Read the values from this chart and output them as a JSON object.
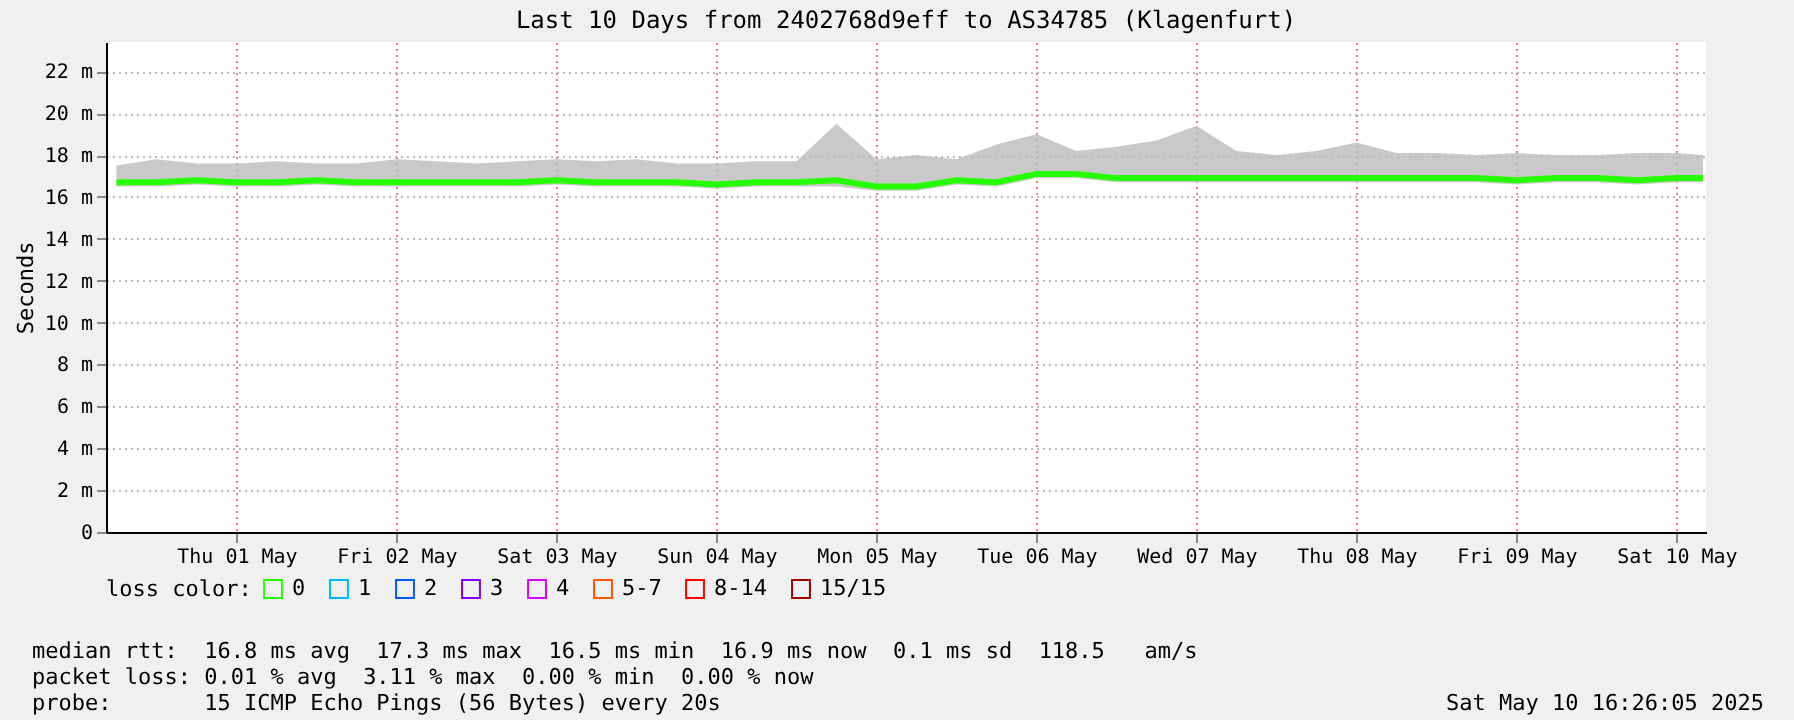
{
  "chart_data": {
    "type": "line",
    "title": "Last 10 Days from 2402768d9eff to AS34785 (Klagenfurt)",
    "ylabel": "Seconds",
    "legend_title": "loss color:",
    "legend": "bottom",
    "grid": true,
    "marker": "none",
    "line_style": "solid",
    "x": [
      "2025-04-30T18:00",
      "2025-05-01T00:00",
      "2025-05-01T06:00",
      "2025-05-01T12:00",
      "2025-05-01T18:00",
      "2025-05-02T00:00",
      "2025-05-02T06:00",
      "2025-05-02T12:00",
      "2025-05-02T18:00",
      "2025-05-03T00:00",
      "2025-05-03T06:00",
      "2025-05-03T12:00",
      "2025-05-03T18:00",
      "2025-05-04T00:00",
      "2025-05-04T06:00",
      "2025-05-04T12:00",
      "2025-05-04T18:00",
      "2025-05-05T00:00",
      "2025-05-05T06:00",
      "2025-05-05T12:00",
      "2025-05-05T18:00",
      "2025-05-06T00:00",
      "2025-05-06T06:00",
      "2025-05-06T12:00",
      "2025-05-06T18:00",
      "2025-05-07T00:00",
      "2025-05-07T06:00",
      "2025-05-07T12:00",
      "2025-05-07T18:00",
      "2025-05-08T00:00",
      "2025-05-08T06:00",
      "2025-05-08T12:00",
      "2025-05-08T18:00",
      "2025-05-09T00:00",
      "2025-05-09T06:00",
      "2025-05-09T12:00",
      "2025-05-09T18:00",
      "2025-05-10T00:00",
      "2025-05-10T06:00",
      "2025-05-10T12:00",
      "2025-05-10T16:00"
    ],
    "series": [
      {
        "name": "0",
        "color": "#26ff00",
        "values": [
          16.7,
          16.7,
          16.8,
          16.7,
          16.7,
          16.8,
          16.7,
          16.7,
          16.7,
          16.7,
          16.7,
          16.8,
          16.7,
          16.7,
          16.7,
          16.6,
          16.7,
          16.7,
          16.8,
          16.5,
          16.5,
          16.8,
          16.7,
          17.1,
          17.1,
          16.9,
          16.9,
          16.9,
          16.9,
          16.9,
          16.9,
          16.9,
          16.9,
          16.9,
          16.9,
          16.8,
          16.9,
          16.9,
          16.8,
          16.9,
          16.9
        ],
        "lower": [
          16.5,
          16.5,
          16.6,
          16.5,
          16.5,
          16.6,
          16.5,
          16.5,
          16.5,
          16.5,
          16.5,
          16.6,
          16.5,
          16.5,
          16.5,
          16.4,
          16.5,
          16.5,
          16.5,
          16.3,
          16.3,
          16.6,
          16.5,
          16.9,
          16.9,
          16.7,
          16.7,
          16.7,
          16.7,
          16.7,
          16.7,
          16.7,
          16.7,
          16.7,
          16.7,
          16.6,
          16.7,
          16.7,
          16.6,
          16.7,
          16.7
        ],
        "upper": [
          17.5,
          17.8,
          17.6,
          17.6,
          17.7,
          17.6,
          17.6,
          17.8,
          17.7,
          17.6,
          17.7,
          17.8,
          17.7,
          17.8,
          17.6,
          17.6,
          17.7,
          17.7,
          19.5,
          17.8,
          18.0,
          17.8,
          18.5,
          19.0,
          18.2,
          18.4,
          18.7,
          19.4,
          18.2,
          18.0,
          18.2,
          18.6,
          18.1,
          18.1,
          18.0,
          18.1,
          18.0,
          18.0,
          18.1,
          18.1,
          18.0
        ]
      },
      {
        "name": "1",
        "color": "#00b8ff",
        "values": [
          null,
          null,
          null,
          null,
          null,
          null,
          null,
          null,
          null,
          null,
          null,
          null,
          null,
          null,
          null,
          null,
          null,
          null,
          null,
          null,
          null,
          null,
          null,
          null,
          null,
          null,
          null,
          null,
          null,
          null,
          null,
          null,
          null,
          null,
          null,
          null,
          null,
          null,
          null,
          null,
          null
        ]
      },
      {
        "name": "2",
        "color": "#0059ff",
        "values": [
          null,
          null,
          null,
          null,
          null,
          null,
          null,
          null,
          null,
          null,
          null,
          null,
          null,
          null,
          null,
          null,
          null,
          null,
          null,
          null,
          null,
          null,
          null,
          null,
          null,
          null,
          null,
          null,
          null,
          null,
          null,
          null,
          null,
          null,
          null,
          null,
          null,
          null,
          null,
          null,
          null
        ]
      },
      {
        "name": "3",
        "color": "#7e00ff",
        "values": [
          null,
          null,
          null,
          null,
          null,
          null,
          null,
          null,
          null,
          null,
          null,
          null,
          null,
          null,
          null,
          null,
          null,
          null,
          null,
          null,
          null,
          null,
          null,
          null,
          null,
          null,
          null,
          null,
          null,
          null,
          null,
          null,
          null,
          null,
          null,
          null,
          null,
          null,
          null,
          null,
          null
        ]
      },
      {
        "name": "4",
        "color": "#dd00ff",
        "values": [
          null,
          null,
          null,
          null,
          null,
          null,
          null,
          null,
          null,
          null,
          null,
          null,
          null,
          null,
          null,
          null,
          null,
          null,
          null,
          null,
          null,
          null,
          null,
          null,
          null,
          null,
          null,
          null,
          null,
          null,
          null,
          null,
          null,
          null,
          null,
          null,
          null,
          null,
          null,
          null,
          null
        ]
      },
      {
        "name": "5-7",
        "color": "#ff5500",
        "values": [
          null,
          null,
          null,
          null,
          null,
          null,
          null,
          null,
          null,
          null,
          null,
          null,
          null,
          null,
          null,
          null,
          null,
          null,
          null,
          null,
          null,
          null,
          null,
          null,
          null,
          null,
          null,
          null,
          null,
          null,
          null,
          null,
          null,
          null,
          null,
          null,
          null,
          null,
          null,
          null,
          null
        ]
      },
      {
        "name": "8-14",
        "color": "#ff0000",
        "values": [
          null,
          null,
          null,
          null,
          null,
          null,
          null,
          null,
          null,
          null,
          null,
          null,
          null,
          null,
          null,
          null,
          null,
          null,
          null,
          null,
          null,
          null,
          null,
          null,
          null,
          null,
          null,
          null,
          null,
          null,
          null,
          null,
          null,
          null,
          null,
          null,
          null,
          null,
          null,
          null,
          null
        ]
      },
      {
        "name": "15/15",
        "color": "#a00000",
        "values": [
          null,
          null,
          null,
          null,
          null,
          null,
          null,
          null,
          null,
          null,
          null,
          null,
          null,
          null,
          null,
          null,
          null,
          null,
          null,
          null,
          null,
          null,
          null,
          null,
          null,
          null,
          null,
          null,
          null,
          null,
          null,
          null,
          null,
          null,
          null,
          null,
          null,
          null,
          null,
          null,
          null
        ]
      }
    ],
    "xlim": [
      "2025-04-30T16:26",
      "2025-05-10T16:26"
    ],
    "xticks": [
      {
        "value": "2025-05-01T12:00",
        "label": "Thu 01 May"
      },
      {
        "value": "2025-05-02T12:00",
        "label": "Fri 02 May"
      },
      {
        "value": "2025-05-03T12:00",
        "label": "Sat 03 May"
      },
      {
        "value": "2025-05-04T12:00",
        "label": "Sun 04 May"
      },
      {
        "value": "2025-05-05T12:00",
        "label": "Mon 05 May"
      },
      {
        "value": "2025-05-06T12:00",
        "label": "Tue 06 May"
      },
      {
        "value": "2025-05-07T12:00",
        "label": "Wed 07 May"
      },
      {
        "value": "2025-05-08T12:00",
        "label": "Thu 08 May"
      },
      {
        "value": "2025-05-09T12:00",
        "label": "Fri 09 May"
      },
      {
        "value": "2025-05-10T12:00",
        "label": "Sat 10 May"
      }
    ],
    "ylim": [
      0,
      23.4
    ],
    "yticks": [
      0,
      {
        "value": 2,
        "label": "2 m"
      },
      {
        "value": 4,
        "label": "4 m"
      },
      {
        "value": 6,
        "label": "6 m"
      },
      {
        "value": 8,
        "label": "8 m"
      },
      {
        "value": 10,
        "label": "10 m"
      },
      {
        "value": 12,
        "label": "12 m"
      },
      {
        "value": 14,
        "label": "14 m"
      },
      {
        "value": 16,
        "label": "16 m"
      },
      {
        "value": 18,
        "label": "18 m"
      },
      {
        "value": 20,
        "label": "20 m"
      },
      {
        "value": 22,
        "label": "22 m"
      }
    ],
    "annotations": [
      "median rtt:  16.8 ms avg  17.3 ms max  16.5 ms min  16.9 ms now  0.1 ms sd  118.5   am/s",
      "packet loss: 0.01 % avg  3.11 % max  0.00 % min  0.00 % now",
      "probe:       15 ICMP Echo Pings (56 Bytes) every 20s",
      "Sat May 10 16:26:05 2025"
    ]
  }
}
